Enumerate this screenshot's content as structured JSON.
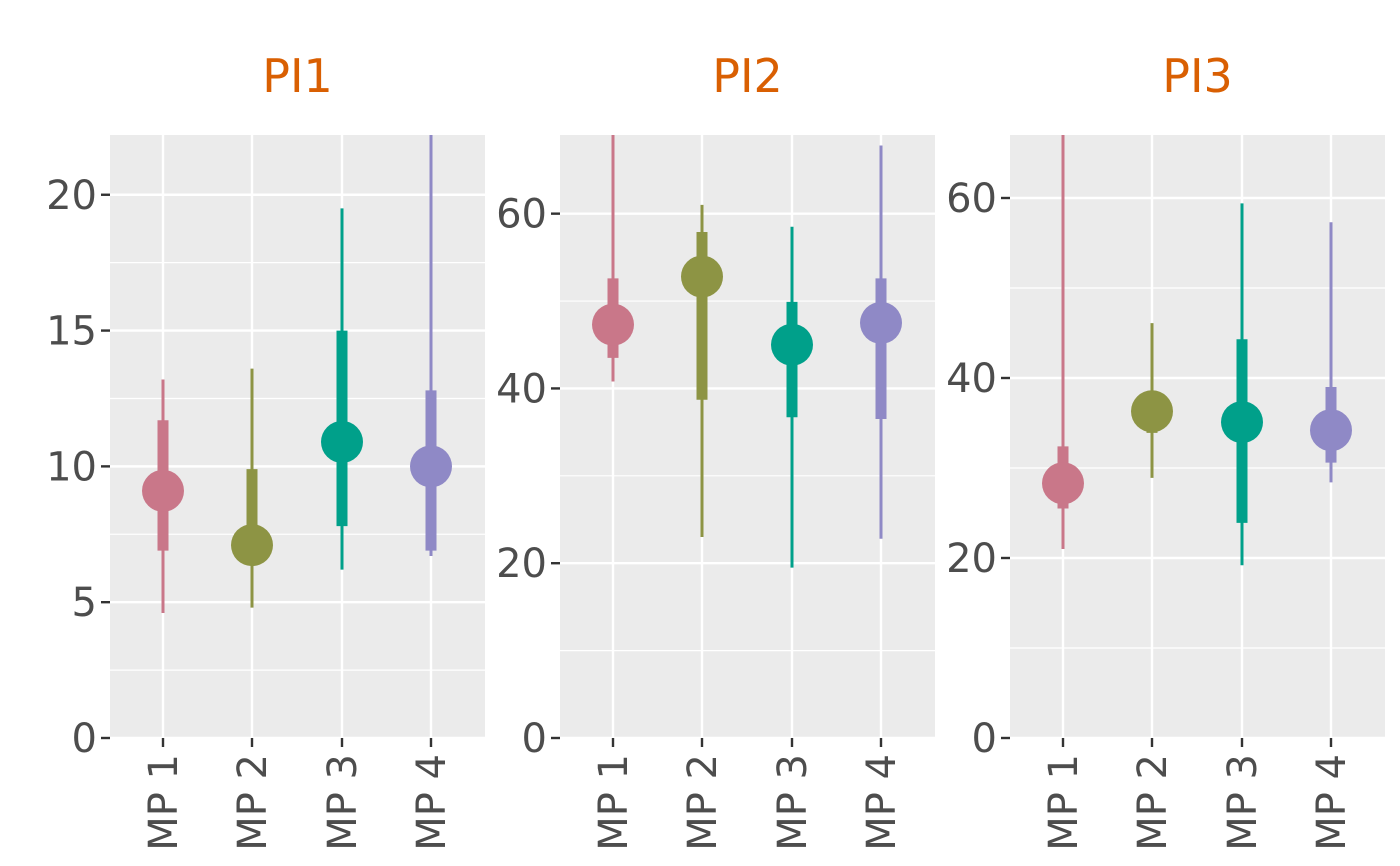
{
  "colors": {
    "panel_background": "#ebebeb",
    "grid": "#ffffff",
    "facet_title": "#d95f02",
    "tick_text": "#4d4d4d",
    "tick_mark": "#333333",
    "MP 1": "#c97789",
    "MP 2": "#8d9444",
    "MP 3": "#00a08a",
    "MP 4": "#8f89c6"
  },
  "chart_data": {
    "type": "pointinterval",
    "categories": [
      "MP 1",
      "MP 2",
      "MP 3",
      "MP 4"
    ],
    "panels": [
      {
        "title": "PI1",
        "ylim": [
          0,
          22.2
        ],
        "y_ticks": [
          0,
          5,
          10,
          15,
          20
        ],
        "series": [
          {
            "category": "MP 1",
            "point": 9.1,
            "inner": [
              6.9,
              11.7
            ],
            "outer": [
              4.6,
              13.2
            ]
          },
          {
            "category": "MP 2",
            "point": 7.1,
            "inner": [
              7.1,
              9.9
            ],
            "outer": [
              4.8,
              13.6
            ]
          },
          {
            "category": "MP 3",
            "point": 10.9,
            "inner": [
              7.8,
              15.0
            ],
            "outer": [
              6.2,
              19.5
            ]
          },
          {
            "category": "MP 4",
            "point": 10.0,
            "inner": [
              6.9,
              12.8
            ],
            "outer": [
              6.7,
              22.2
            ]
          }
        ]
      },
      {
        "title": "PI2",
        "ylim": [
          0,
          69
        ],
        "y_ticks": [
          0,
          20,
          40,
          60
        ],
        "series": [
          {
            "category": "MP 1",
            "point": 47.3,
            "inner": [
              43.5,
              52.6
            ],
            "outer": [
              40.8,
              69
            ]
          },
          {
            "category": "MP 2",
            "point": 52.8,
            "inner": [
              38.7,
              57.9
            ],
            "outer": [
              23.0,
              61.0
            ]
          },
          {
            "category": "MP 3",
            "point": 45.0,
            "inner": [
              36.7,
              49.9
            ],
            "outer": [
              19.5,
              58.5
            ]
          },
          {
            "category": "MP 4",
            "point": 47.5,
            "inner": [
              36.5,
              52.6
            ],
            "outer": [
              22.8,
              67.8
            ]
          }
        ]
      },
      {
        "title": "PI3",
        "ylim": [
          0,
          67
        ],
        "y_ticks": [
          0,
          20,
          40,
          60
        ],
        "series": [
          {
            "category": "MP 1",
            "point": 28.3,
            "inner": [
              25.5,
              32.4
            ],
            "outer": [
              21.0,
              67
            ]
          },
          {
            "category": "MP 2",
            "point": 36.3,
            "inner": [
              33.9,
              36.3
            ],
            "outer": [
              28.9,
              46.1
            ]
          },
          {
            "category": "MP 3",
            "point": 35.1,
            "inner": [
              23.9,
              44.3
            ],
            "outer": [
              19.2,
              59.4
            ]
          },
          {
            "category": "MP 4",
            "point": 34.2,
            "inner": [
              30.6,
              39.0
            ],
            "outer": [
              28.4,
              57.3
            ]
          }
        ]
      }
    ]
  }
}
